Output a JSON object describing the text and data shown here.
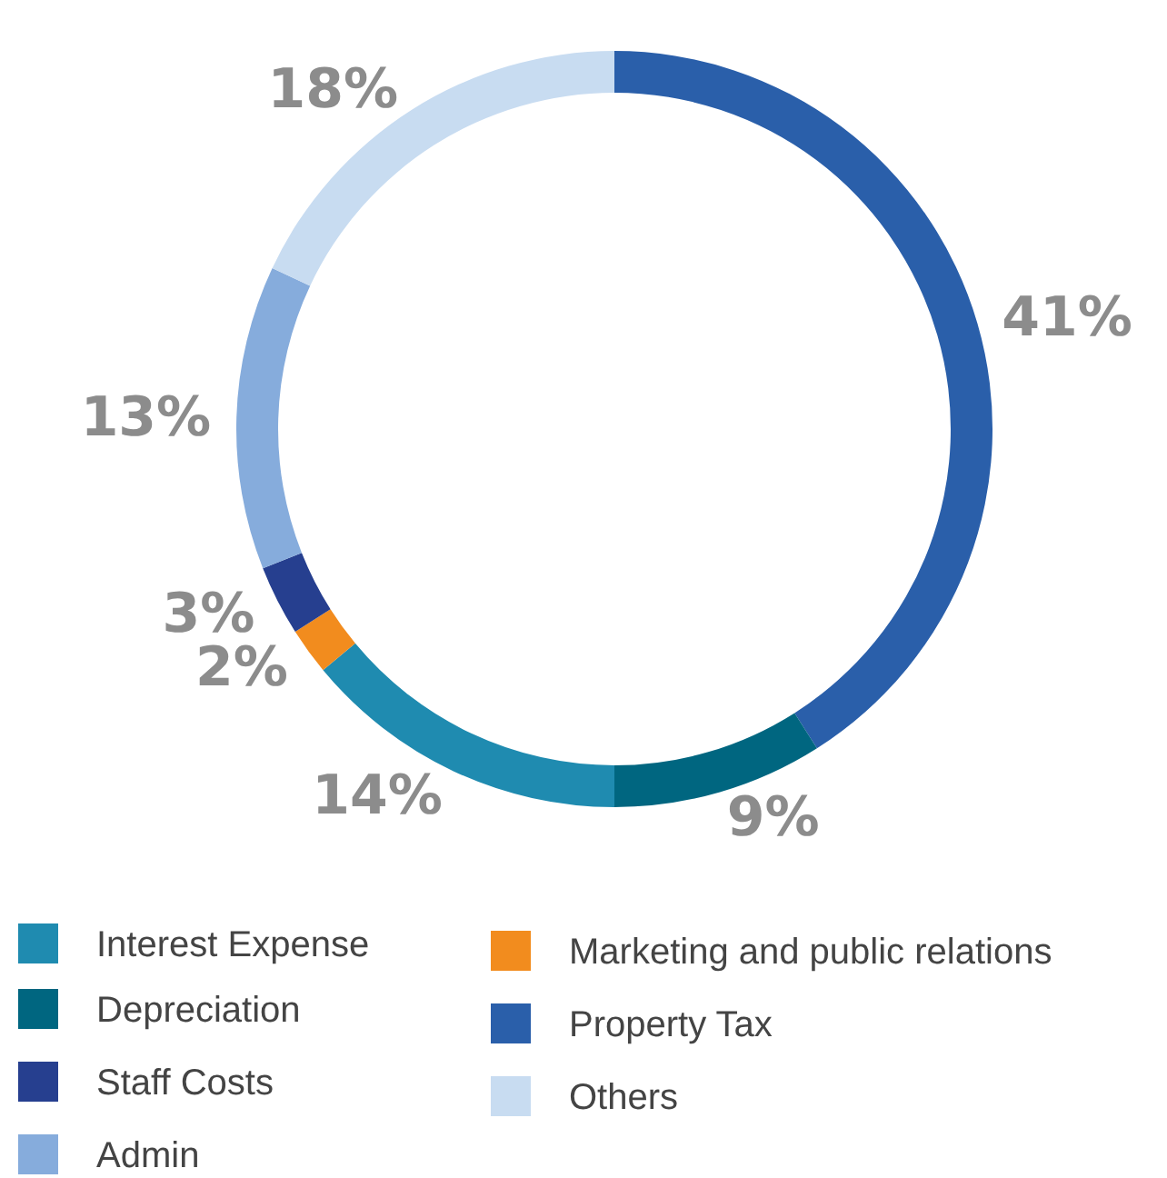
{
  "chart_data": {
    "type": "donut",
    "categories": [
      "Property Tax",
      "Depreciation",
      "Interest Expense",
      "Marketing and public relations",
      "Staff Costs",
      "Admin",
      "Others"
    ],
    "values": [
      41,
      9,
      14,
      2,
      3,
      13,
      18
    ],
    "colors": [
      "#2a5faa",
      "#006680",
      "#1f8bb0",
      "#f28c1e",
      "#263f8f",
      "#86acdc",
      "#c8dcf1"
    ],
    "value_labels": [
      "41%",
      "9%",
      "14%",
      "2%",
      "3%",
      "13%",
      "18%"
    ],
    "legend": "bottom"
  }
}
